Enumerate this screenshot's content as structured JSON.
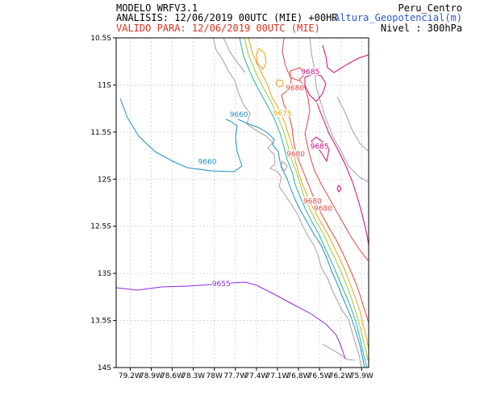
{
  "header": {
    "model": "MODELO WRFV3.1",
    "analysis": "ANALISIS: 12/06/2019 00UTC (MIE) +00HR",
    "valid": "VALIDO PARA: 12/06/2019 00UTC (MIE)",
    "region": "Peru_Centro",
    "variable": "Altura_Geopotencial(m)",
    "level": "Nivel : 300hPa"
  },
  "map": {
    "lon_range": [
      -79.4,
      -75.8
    ],
    "lat_range": [
      -14.0,
      -10.5
    ],
    "lat_ticks": [
      "10.5S",
      "11S",
      "11.5S",
      "12S",
      "12.5S",
      "13S",
      "13.5S",
      "14S"
    ],
    "lon_ticks": [
      "79.2W",
      "78.9W",
      "78.6W",
      "78.3W",
      "78W",
      "77.7W",
      "77.4W",
      "77.1W",
      "76.8W",
      "76.5W",
      "76.2W",
      "75.9W"
    ],
    "grid": true,
    "colors": {
      "coast": "#a8a8a8",
      "c9655": "#8a2be2",
      "c9660": "#1e90c8",
      "c9665": "#20b2aa",
      "c9670": "#9acd32",
      "c9675": "#e8a317",
      "c9680": "#e8453c",
      "c9685": "#d6007f"
    },
    "contour_labels": [
      {
        "text": "9655",
        "lon": -77.9,
        "lat": -13.12,
        "color": "c9655"
      },
      {
        "text": "9660",
        "lon": -78.1,
        "lat": -11.82,
        "color": "c9660"
      },
      {
        "text": "9660",
        "lon": -77.65,
        "lat": -11.32,
        "color": "c9660"
      },
      {
        "text": "9675",
        "lon": -77.03,
        "lat": -11.31,
        "color": "c9675"
      },
      {
        "text": "9680",
        "lon": -76.85,
        "lat": -11.04,
        "color": "c9680"
      },
      {
        "text": "9685",
        "lon": -76.63,
        "lat": -10.87,
        "color": "c9685"
      },
      {
        "text": "9685",
        "lon": -76.5,
        "lat": -11.66,
        "color": "c9685"
      },
      {
        "text": "9680",
        "lon": -76.84,
        "lat": -11.74,
        "color": "c9680"
      },
      {
        "text": "9680",
        "lon": -76.6,
        "lat": -12.24,
        "color": "c9680"
      },
      {
        "text": "9680",
        "lon": -76.45,
        "lat": -12.32,
        "color": "c9680"
      }
    ]
  }
}
